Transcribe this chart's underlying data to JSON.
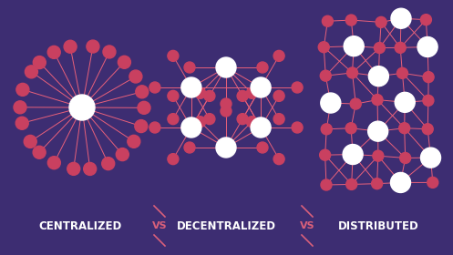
{
  "bg_color": "#3d2d72",
  "line_color": "#e8607a",
  "node_color_small": "#c94060",
  "node_color_hub": "#ffffff",
  "vs_color": "#d9607a",
  "label_color": "#ffffff",
  "labels": [
    "CENTRALIZED",
    "VS",
    "DECENTRALIZED",
    "VS",
    "DISTRIBUTED"
  ],
  "fig_width": 4.97,
  "fig_height": 2.8,
  "lw": 0.7
}
